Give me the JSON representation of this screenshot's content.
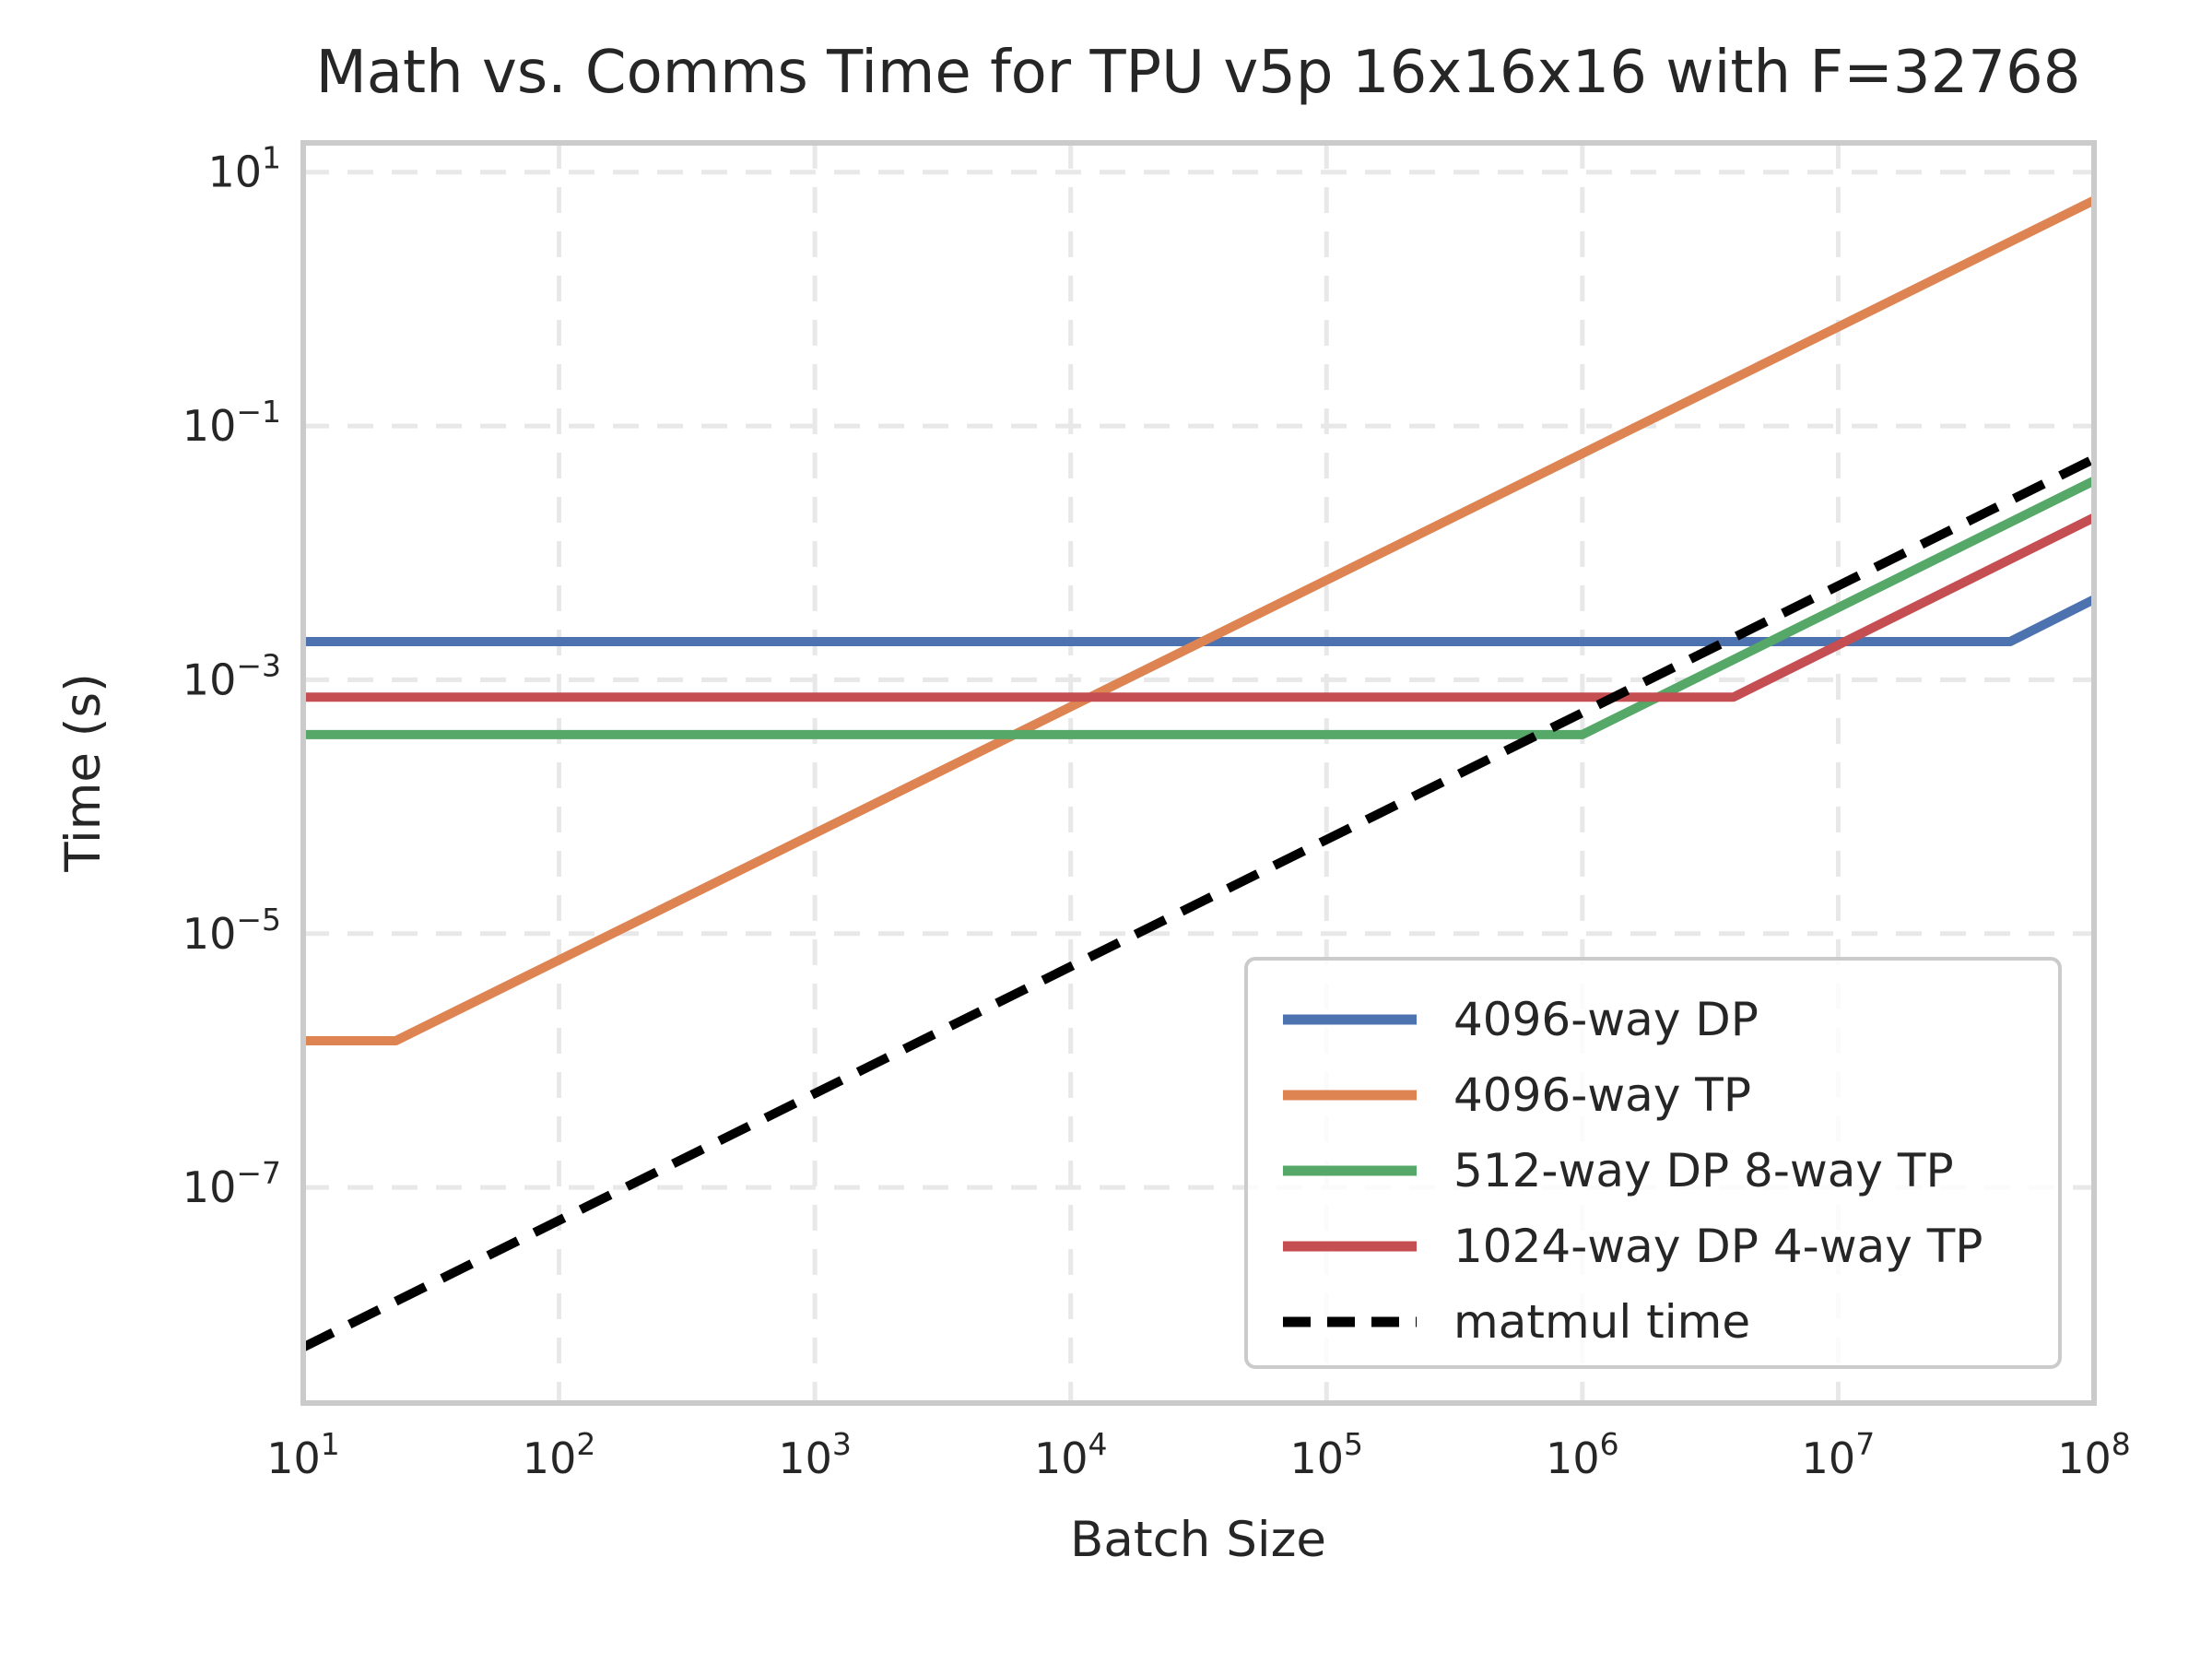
{
  "colors": {
    "background": "#ffffff",
    "text": "#262626",
    "grid": "#e8e8e8",
    "spine": "#cbcbcb",
    "blue": "#4C72B0",
    "orange": "#DD8452",
    "green": "#55A868",
    "red": "#C44E52",
    "black": "#000000"
  },
  "chart_data": {
    "type": "line",
    "title": "Math vs. Comms Time for TPU v5p 16x16x16 with F=32768",
    "xlabel": "Batch Size",
    "ylabel": "Time (s)",
    "x_scale": "log",
    "y_scale": "log",
    "xlim": [
      10,
      100000000
    ],
    "ylim": [
      2e-09,
      17
    ],
    "x_tick_exponents": [
      1,
      2,
      3,
      4,
      5,
      6,
      7,
      8
    ],
    "y_tick_exponents": [
      1,
      -1,
      -3,
      -5,
      -7
    ],
    "grid": true,
    "grid_style": "dashed",
    "legend_position": "lower right",
    "series": [
      {
        "name": "4096-way DP",
        "color": "#4C72B0",
        "style": "solid",
        "points": [
          [
            10,
            0.002
          ],
          [
            47000000,
            0.002
          ],
          [
            100000000,
            0.0043
          ]
        ]
      },
      {
        "name": "4096-way TP",
        "color": "#DD8452",
        "style": "solid",
        "points": [
          [
            10,
            1.43e-06
          ],
          [
            23,
            1.43e-06
          ],
          [
            100000000,
            6.0
          ]
        ]
      },
      {
        "name": "512-way DP 8-way TP",
        "color": "#55A868",
        "style": "solid",
        "points": [
          [
            10,
            0.00037
          ],
          [
            1000000,
            0.00037
          ],
          [
            100000000,
            0.037
          ]
        ]
      },
      {
        "name": "1024-way DP 4-way TP",
        "color": "#C44E52",
        "style": "solid",
        "points": [
          [
            10,
            0.00073
          ],
          [
            3900000,
            0.00073
          ],
          [
            100000000,
            0.019
          ]
        ]
      },
      {
        "name": "matmul time",
        "color": "#000000",
        "style": "dashed",
        "points": [
          [
            10,
            5.5e-09
          ],
          [
            100000000,
            0.055
          ]
        ]
      }
    ]
  }
}
